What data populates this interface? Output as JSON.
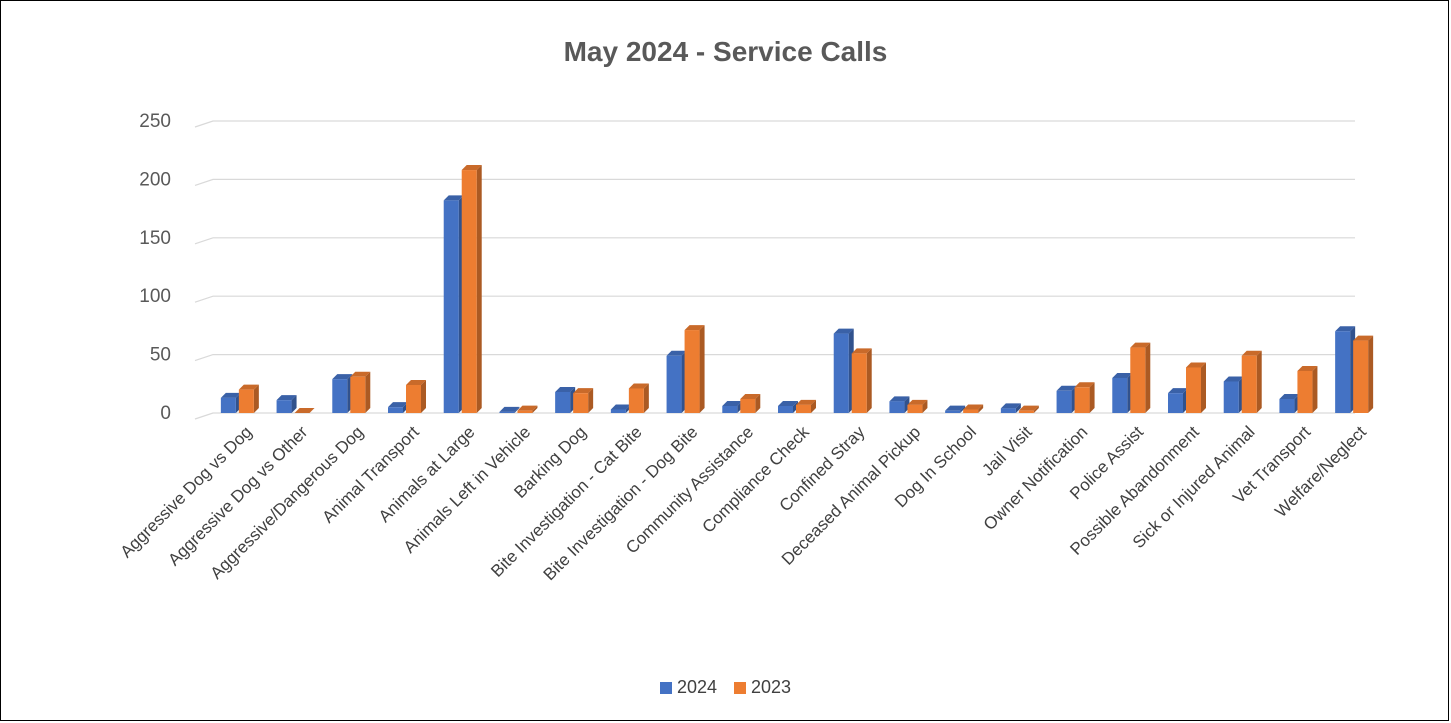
{
  "chart_data": {
    "type": "bar",
    "title": "May 2024 - Service Calls",
    "xlabel": "",
    "ylabel": "",
    "ylim": [
      0,
      250
    ],
    "yticks": [
      0,
      50,
      100,
      150,
      200,
      250
    ],
    "grid": true,
    "legend_position": "bottom",
    "categories": [
      "Aggressive Dog vs Dog",
      "Aggressive Dog vs Other",
      "Aggressive/Dangerous Dog",
      "Animal Transport",
      "Animals at Large",
      "Animals Left in Vehicle",
      "Barking Dog",
      "Bite Investigation - Cat Bite",
      "Bite Investigation - Dog Bite",
      "Community Assistance",
      "Compliance Check",
      "Confined Stray",
      "Deceased Animal Pickup",
      "Dog In School",
      "Jail Visit",
      "Owner Notification",
      "Police Assist",
      "Possible Abandonment",
      "Sick or Injured Animal",
      "Vet Transport",
      "Welfare/Neglect"
    ],
    "series": [
      {
        "name": "2024",
        "color": "#4472C4",
        "values": [
          13,
          11,
          29,
          5,
          182,
          1,
          18,
          3,
          49,
          6,
          6,
          68,
          10,
          2,
          4,
          19,
          30,
          17,
          27,
          12,
          70
        ]
      },
      {
        "name": "2023",
        "color": "#ED7D31",
        "values": [
          20,
          0,
          31,
          24,
          208,
          2,
          17,
          21,
          71,
          12,
          7,
          51,
          7,
          3,
          2,
          22,
          56,
          39,
          49,
          36,
          62
        ]
      }
    ]
  }
}
